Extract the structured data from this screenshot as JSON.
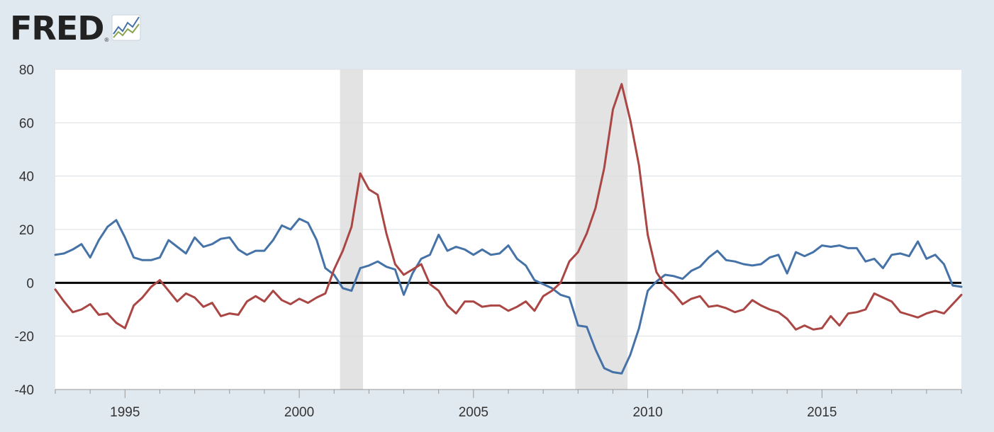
{
  "brand": {
    "name": "FRED",
    "reg": "®"
  },
  "colors": {
    "background": "#e1e9f0",
    "plot": "#ffffff",
    "grid": "#dcdfe3",
    "recession": "#e3e3e3",
    "zero_line": "#000000",
    "series_blue": "#4572a7",
    "series_red": "#aa4643"
  },
  "chart_data": {
    "type": "line",
    "title": "",
    "xlabel": "",
    "ylabel": "",
    "xlim": [
      1993.0,
      2019.0
    ],
    "ylim": [
      -40,
      80
    ],
    "y_ticks": [
      -40,
      -20,
      0,
      20,
      40,
      60,
      80
    ],
    "y_tick_labels": [
      "-40",
      "-20",
      "0",
      "20",
      "40",
      "60",
      "80"
    ],
    "x_ticks": [
      1995,
      2000,
      2005,
      2010,
      2015
    ],
    "x_tick_labels": [
      "1995",
      "2000",
      "2005",
      "2010",
      "2015"
    ],
    "grid": true,
    "legend": "none",
    "zero_line": 0,
    "recessions": [
      [
        2001.17,
        2001.83
      ],
      [
        2007.92,
        2009.42
      ]
    ],
    "series": [
      {
        "color": "#4572a7",
        "x": [
          1993.0,
          1993.25,
          1993.5,
          1993.75,
          1994.0,
          1994.25,
          1994.5,
          1994.75,
          1995.0,
          1995.25,
          1995.5,
          1995.75,
          1996.0,
          1996.25,
          1996.5,
          1996.75,
          1997.0,
          1997.25,
          1997.5,
          1997.75,
          1998.0,
          1998.25,
          1998.5,
          1998.75,
          1999.0,
          1999.25,
          1999.5,
          1999.75,
          2000.0,
          2000.25,
          2000.5,
          2000.75,
          2001.0,
          2001.25,
          2001.5,
          2001.75,
          2002.0,
          2002.25,
          2002.5,
          2002.75,
          2003.0,
          2003.25,
          2003.5,
          2003.75,
          2004.0,
          2004.25,
          2004.5,
          2004.75,
          2005.0,
          2005.25,
          2005.5,
          2005.75,
          2006.0,
          2006.25,
          2006.5,
          2006.75,
          2007.0,
          2007.25,
          2007.5,
          2007.75,
          2008.0,
          2008.25,
          2008.5,
          2008.75,
          2009.0,
          2009.25,
          2009.5,
          2009.75,
          2010.0,
          2010.25,
          2010.5,
          2010.75,
          2011.0,
          2011.25,
          2011.5,
          2011.75,
          2012.0,
          2012.25,
          2012.5,
          2012.75,
          2013.0,
          2013.25,
          2013.5,
          2013.75,
          2014.0,
          2014.25,
          2014.5,
          2014.75,
          2015.0,
          2015.25,
          2015.5,
          2015.75,
          2016.0,
          2016.25,
          2016.5,
          2016.75,
          2017.0,
          2017.25,
          2017.5,
          2017.75,
          2018.0,
          2018.25,
          2018.5,
          2018.75,
          2019.0
        ],
        "y": [
          10.5,
          11,
          12.5,
          14.5,
          9.5,
          16,
          21,
          23.5,
          17,
          9.5,
          8.5,
          8.5,
          9.5,
          16,
          13.5,
          11,
          17,
          13.5,
          14.5,
          16.5,
          17,
          12.5,
          10.5,
          12,
          12,
          16,
          21.5,
          20,
          24,
          22.5,
          16,
          5.5,
          3,
          -2,
          -3,
          5.5,
          6.5,
          8,
          6,
          5,
          -4.5,
          3.5,
          9,
          10.5,
          18,
          12,
          13.5,
          12.5,
          10.5,
          12.5,
          10.5,
          11,
          14,
          9,
          6.5,
          1,
          -0.5,
          -2,
          -4.5,
          -5.5,
          -16,
          -16.5,
          -25,
          -32,
          -33.5,
          -34,
          -27,
          -17,
          -3,
          0.5,
          3,
          2.5,
          1.5,
          4.5,
          6,
          9.5,
          12,
          8.5,
          8,
          7,
          6.5,
          7,
          9.5,
          10.5,
          3.5,
          11.5,
          10,
          11.5,
          14,
          13.5,
          14,
          13,
          13,
          8,
          9,
          5.5,
          10.5,
          11,
          10,
          15.5,
          9,
          10.5,
          7,
          -1,
          -1.5
        ]
      },
      {
        "color": "#aa4643",
        "x": [
          1993.0,
          1993.25,
          1993.5,
          1993.75,
          1994.0,
          1994.25,
          1994.5,
          1994.75,
          1995.0,
          1995.25,
          1995.5,
          1995.75,
          1996.0,
          1996.25,
          1996.5,
          1996.75,
          1997.0,
          1997.25,
          1997.5,
          1997.75,
          1998.0,
          1998.25,
          1998.5,
          1998.75,
          1999.0,
          1999.25,
          1999.5,
          1999.75,
          2000.0,
          2000.25,
          2000.5,
          2000.75,
          2001.0,
          2001.25,
          2001.5,
          2001.75,
          2002.0,
          2002.25,
          2002.5,
          2002.75,
          2003.0,
          2003.25,
          2003.5,
          2003.75,
          2004.0,
          2004.25,
          2004.5,
          2004.75,
          2005.0,
          2005.25,
          2005.5,
          2005.75,
          2006.0,
          2006.25,
          2006.5,
          2006.75,
          2007.0,
          2007.25,
          2007.5,
          2007.75,
          2008.0,
          2008.25,
          2008.5,
          2008.75,
          2009.0,
          2009.25,
          2009.5,
          2009.75,
          2010.0,
          2010.25,
          2010.5,
          2010.75,
          2011.0,
          2011.25,
          2011.5,
          2011.75,
          2012.0,
          2012.25,
          2012.5,
          2012.75,
          2013.0,
          2013.25,
          2013.5,
          2013.75,
          2014.0,
          2014.25,
          2014.5,
          2014.75,
          2015.0,
          2015.25,
          2015.5,
          2015.75,
          2016.0,
          2016.25,
          2016.5,
          2016.75,
          2017.0,
          2017.25,
          2017.5,
          2017.75,
          2018.0,
          2018.25,
          2018.5,
          2018.75,
          2019.0
        ],
        "y": [
          -2.5,
          -7,
          -11,
          -10,
          -8,
          -12,
          -11.5,
          -15,
          -17,
          -8.5,
          -5.5,
          -1.5,
          1,
          -3,
          -7,
          -4,
          -5.5,
          -9,
          -7.5,
          -12.5,
          -11.5,
          -12,
          -7,
          -5,
          -7,
          -3,
          -6.5,
          -8,
          -6,
          -7.5,
          -5.5,
          -4,
          5,
          12,
          21,
          41,
          35,
          33,
          18.5,
          7,
          3,
          5,
          7,
          -0.5,
          -3,
          -8.5,
          -11.5,
          -7,
          -7,
          -9,
          -8.5,
          -8.5,
          -10.5,
          -9,
          -7,
          -10.5,
          -5,
          -3,
          0,
          8,
          11.5,
          18.5,
          28,
          43,
          65,
          74.5,
          61,
          44,
          18,
          4,
          -1,
          -4,
          -8,
          -6,
          -5,
          -9,
          -8.5,
          -9.5,
          -11,
          -10,
          -6.5,
          -8.5,
          -10,
          -11,
          -13.5,
          -17.5,
          -16,
          -17.5,
          -17,
          -12.5,
          -16,
          -11.5,
          -11,
          -10,
          -4,
          -5.5,
          -7,
          -11,
          -12,
          -13,
          -11.5,
          -10.5,
          -11.5,
          -8,
          -4.5
        ]
      }
    ]
  }
}
